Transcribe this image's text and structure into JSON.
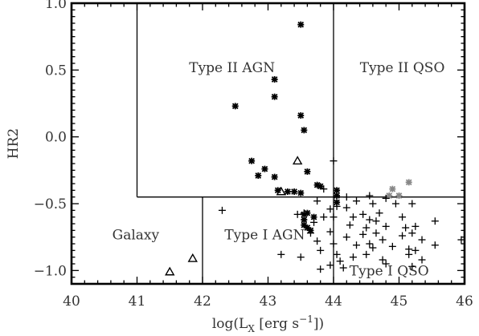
{
  "chart_data": {
    "type": "scatter",
    "title": "",
    "xlabel_main": "log(L",
    "xlabel_sub": "X",
    "xlabel_tail": " [erg s",
    "xlabel_sup": "−1",
    "xlabel_end": "])",
    "ylabel": "HR2",
    "xlim": [
      40,
      46
    ],
    "ylim": [
      -1.1,
      1.0
    ],
    "xticks": [
      {
        "value": 40,
        "label": "40"
      },
      {
        "value": 41,
        "label": "41"
      },
      {
        "value": 42,
        "label": "42"
      },
      {
        "value": 43,
        "label": "43"
      },
      {
        "value": 44,
        "label": "44"
      },
      {
        "value": 45,
        "label": "45"
      },
      {
        "value": 46,
        "label": "46"
      }
    ],
    "yticks": [
      {
        "value": 1.0,
        "label": "1.0"
      },
      {
        "value": 0.5,
        "label": "0.5"
      },
      {
        "value": 0.0,
        "label": "0.0"
      },
      {
        "value": -0.5,
        "label": "−0.5"
      },
      {
        "value": -1.0,
        "label": "−1.0"
      }
    ],
    "region_lines": [
      {
        "x1": 41,
        "y1": 1.0,
        "x2": 41,
        "y2": -0.45
      },
      {
        "x1": 44,
        "y1": 1.0,
        "x2": 44,
        "y2": -1.1
      },
      {
        "x1": 41,
        "y1": -0.45,
        "x2": 46,
        "y2": -0.45
      },
      {
        "x1": 42,
        "y1": -0.45,
        "x2": 42,
        "y2": -1.1
      }
    ],
    "regions": [
      {
        "label": "Type II AGN",
        "x": 42.45,
        "y": 0.52
      },
      {
        "label": "Type II QSO",
        "x": 45.05,
        "y": 0.52
      },
      {
        "label": "Galaxy",
        "x": 40.98,
        "y": -0.73
      },
      {
        "label": "Type I AGN",
        "x": 42.95,
        "y": -0.73
      },
      {
        "label": "Type I QSO",
        "x": 44.85,
        "y": -1.0
      }
    ],
    "series": [
      {
        "marker": "asterisk",
        "color": "#000000",
        "points": [
          [
            43.5,
            0.84
          ],
          [
            43.1,
            0.43
          ],
          [
            43.1,
            0.3
          ],
          [
            42.5,
            0.23
          ],
          [
            43.5,
            0.16
          ],
          [
            43.55,
            0.05
          ],
          [
            42.75,
            -0.18
          ],
          [
            42.95,
            -0.24
          ],
          [
            42.85,
            -0.29
          ],
          [
            43.1,
            -0.3
          ],
          [
            43.6,
            -0.26
          ],
          [
            43.15,
            -0.4
          ],
          [
            43.3,
            -0.41
          ],
          [
            43.4,
            -0.41
          ],
          [
            43.5,
            -0.42
          ],
          [
            43.75,
            -0.36
          ],
          [
            43.8,
            -0.37
          ],
          [
            44.05,
            -0.4
          ],
          [
            44.05,
            -0.44
          ],
          [
            44.05,
            -0.49
          ],
          [
            43.55,
            -0.58
          ],
          [
            43.55,
            -0.62
          ],
          [
            43.55,
            -0.66
          ],
          [
            43.6,
            -0.57
          ],
          [
            43.6,
            -0.68
          ],
          [
            43.65,
            -0.7
          ],
          [
            43.7,
            -0.6
          ]
        ]
      },
      {
        "marker": "asterisk",
        "color": "#888888",
        "points": [
          [
            45.15,
            -0.34
          ],
          [
            44.9,
            -0.39
          ],
          [
            45.0,
            -0.44
          ],
          [
            44.85,
            -0.44
          ]
        ]
      },
      {
        "marker": "triangle",
        "color": "#000000",
        "points": [
          [
            43.45,
            -0.18
          ],
          [
            43.2,
            -0.41
          ],
          [
            41.85,
            -0.91
          ],
          [
            41.5,
            -1.01
          ]
        ]
      },
      {
        "marker": "plus",
        "color": "#000000",
        "points": [
          [
            44.0,
            -0.18
          ],
          [
            43.85,
            -0.39
          ],
          [
            43.75,
            -0.48
          ],
          [
            44.2,
            -0.45
          ],
          [
            44.55,
            -0.44
          ],
          [
            44.35,
            -0.48
          ],
          [
            42.3,
            -0.55
          ],
          [
            43.95,
            -0.54
          ],
          [
            44.05,
            -0.52
          ],
          [
            44.6,
            -0.5
          ],
          [
            44.8,
            -0.46
          ],
          [
            44.2,
            -0.53
          ],
          [
            44.95,
            -0.5
          ],
          [
            45.2,
            -0.5
          ],
          [
            43.45,
            -0.58
          ],
          [
            43.55,
            -0.57
          ],
          [
            44.45,
            -0.58
          ],
          [
            44.7,
            -0.57
          ],
          [
            44.3,
            -0.6
          ],
          [
            44.55,
            -0.62
          ],
          [
            43.85,
            -0.6
          ],
          [
            44.65,
            -0.63
          ],
          [
            45.05,
            -0.6
          ],
          [
            44.0,
            -0.6
          ],
          [
            45.55,
            -0.63
          ],
          [
            43.7,
            -0.64
          ],
          [
            44.25,
            -0.66
          ],
          [
            44.5,
            -0.68
          ],
          [
            44.8,
            -0.67
          ],
          [
            45.1,
            -0.68
          ],
          [
            45.25,
            -0.67
          ],
          [
            43.95,
            -0.71
          ],
          [
            43.65,
            -0.72
          ],
          [
            44.45,
            -0.73
          ],
          [
            44.65,
            -0.72
          ],
          [
            45.05,
            -0.74
          ],
          [
            45.2,
            -0.72
          ],
          [
            44.2,
            -0.75
          ],
          [
            44.75,
            -0.77
          ],
          [
            43.75,
            -0.78
          ],
          [
            45.35,
            -0.77
          ],
          [
            45.95,
            -0.77
          ],
          [
            44.0,
            -0.8
          ],
          [
            44.35,
            -0.81
          ],
          [
            44.55,
            -0.8
          ],
          [
            44.6,
            -0.83
          ],
          [
            44.9,
            -0.82
          ],
          [
            45.15,
            -0.84
          ],
          [
            45.25,
            -0.85
          ],
          [
            45.55,
            -0.81
          ],
          [
            43.8,
            -0.85
          ],
          [
            44.05,
            -0.88
          ],
          [
            44.3,
            -0.9
          ],
          [
            44.5,
            -0.88
          ],
          [
            44.75,
            -0.92
          ],
          [
            45.15,
            -0.88
          ],
          [
            45.35,
            -0.92
          ],
          [
            45.2,
            -0.97
          ],
          [
            44.1,
            -0.93
          ],
          [
            43.95,
            -0.96
          ],
          [
            43.2,
            -0.88
          ],
          [
            43.5,
            -0.9
          ],
          [
            43.8,
            -0.99
          ],
          [
            44.15,
            -0.98
          ],
          [
            44.8,
            -0.95
          ]
        ]
      }
    ]
  }
}
